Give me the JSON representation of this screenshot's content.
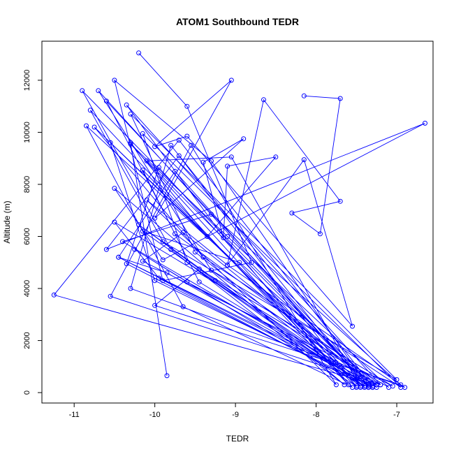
{
  "chart_data": {
    "type": "line",
    "title": "ATOM1 Southbound TEDR",
    "xlabel": "TEDR",
    "ylabel": "Altitude (m)",
    "xlim": [
      -11.4,
      -6.55
    ],
    "ylim": [
      -400,
      13500
    ],
    "xticks": [
      -11,
      -10,
      -9,
      -8,
      -7
    ],
    "yticks": [
      0,
      2000,
      4000,
      6000,
      8000,
      10000,
      12000
    ],
    "grid": false,
    "line_color": "#0000ff",
    "marker": "open-circle",
    "series": [
      {
        "x": [
          -10.2,
          -9.6,
          -8.8,
          -9.9,
          -10.5,
          -9.3,
          -7.35,
          -10.7,
          -9.3,
          -7.25,
          -11.25,
          -9.7,
          -7.3,
          -10.6,
          -9.75,
          -7.2,
          -10.35,
          -9.2,
          -7.6,
          -10.8,
          -9.9,
          -7.0,
          -10.3,
          -9.5,
          -7.4,
          -10.75,
          -9.4,
          -6.95,
          -10.15,
          -9.6,
          -7.45,
          -10.55,
          -10.0,
          -7.3,
          -10.9,
          -9.8,
          -7.65,
          -10.5,
          -9.9,
          -6.65,
          -10.6,
          -9.7,
          -7.5,
          -10.15,
          -9.45,
          -7.35,
          -10.85,
          -9.65,
          -7.55,
          -10.3,
          -9.1,
          -7.1,
          -10.5,
          -9.95,
          -7.4,
          -10.15,
          -8.95,
          -7.25,
          -10.45,
          -9.75,
          -7.35,
          -10.35,
          -9.95,
          -7.5,
          -10.25,
          -9.6,
          -7.2,
          -10.55,
          -9.55,
          -7.75,
          -10.1,
          -9.1,
          -6.9,
          -10.3,
          -9.8,
          -7.4,
          -10.2,
          -9.25,
          -7.3,
          -10.4,
          -9.3,
          -6.95,
          -10.0,
          -9.45,
          -7.05,
          -10.15,
          -9.65,
          -7.25,
          -10.45,
          -9.85,
          -7.35,
          -10.1,
          -9.05,
          -7.45
        ],
        "y": [
          13050,
          11000,
          5000,
          4300,
          12000,
          8900,
          200,
          11600,
          4700,
          300,
          3750,
          9700,
          250,
          11200,
          6100,
          300,
          11050,
          6200,
          300,
          10850,
          5800,
          500,
          10700,
          5400,
          200,
          10200,
          5200,
          200,
          9950,
          5000,
          250,
          9600,
          4300,
          200,
          11600,
          5500,
          300,
          7850,
          5100,
          10350,
          5500,
          9100,
          200,
          8550,
          4250,
          250,
          10250,
          3300,
          200,
          9550,
          6000,
          200,
          6550,
          4400,
          250,
          6200,
          5000,
          300,
          5200,
          8500,
          200,
          4950,
          8650,
          250,
          5500,
          4250,
          300,
          3700,
          9500,
          300,
          7400,
          4900,
          200,
          4000,
          9500,
          250,
          6450,
          4300,
          200,
          5800,
          6850,
          300,
          3350,
          4750,
          250,
          5050,
          6150,
          200,
          5200,
          4600,
          300,
          8900,
          9050,
          200
        ]
      },
      {
        "x": [
          -8.15,
          -7.7,
          -7.95,
          -8.3,
          -7.7,
          -8.65,
          -9.1,
          -8.15,
          -7.55,
          -9.6,
          -10.0,
          -9.05,
          -10.0,
          -8.9,
          -9.4,
          -9.15,
          -9.1,
          -8.5,
          -9.35,
          -10.3,
          -9.85
        ],
        "y": [
          11400,
          11300,
          6100,
          6900,
          7350,
          11250,
          4900,
          8950,
          2550,
          9850,
          9450,
          12000,
          6700,
          9750,
          8850,
          5950,
          8700,
          9050,
          6000,
          9600,
          650
        ]
      }
    ]
  }
}
